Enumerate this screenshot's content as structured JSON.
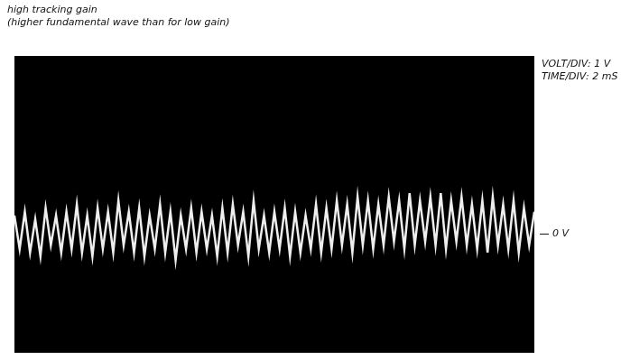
{
  "chart_data": {
    "type": "line",
    "title": "high tracking gain",
    "subtitle": "(higher fundamental wave than for low gain)",
    "annotations": [
      {
        "text": "VOLT/DIV: 1 V"
      },
      {
        "text": "TIME/DIV: 2 mS"
      },
      {
        "text": "0 V",
        "y": 0
      }
    ],
    "x": [
      0,
      0.2,
      0.4,
      0.6,
      0.8,
      1,
      1.2,
      1.4,
      1.6,
      1.8,
      2,
      2.2,
      2.4,
      2.6,
      2.8,
      3,
      3.2,
      3.4,
      3.6,
      3.8,
      4,
      4.2,
      4.4,
      4.6,
      4.8,
      5,
      5.2,
      5.4,
      5.6,
      5.8,
      6,
      6.2,
      6.4,
      6.6,
      6.8,
      7,
      7.2,
      7.4,
      7.6,
      7.8,
      8,
      8.2,
      8.4,
      8.6,
      8.8,
      9,
      9.2,
      9.4,
      9.6,
      9.8,
      10,
      10.2,
      10.4,
      10.6,
      10.8,
      11,
      11.2,
      11.4,
      11.6,
      11.8,
      12,
      12.2,
      12.4,
      12.6,
      12.8,
      13,
      13.2,
      13.4,
      13.6,
      13.8,
      14,
      14.2,
      14.4,
      14.6,
      14.8,
      15,
      15.2,
      15.4,
      15.6,
      15.8,
      16,
      16.2,
      16.4,
      16.6,
      16.8,
      17,
      17.2,
      17.4,
      17.6,
      17.8,
      18,
      18.2,
      18.4,
      18.6,
      18.8,
      19,
      19.2,
      19.4,
      19.6,
      19.8,
      20
    ],
    "values": [
      0.5,
      -0.4,
      0.6,
      -0.5,
      0.4,
      -0.6,
      0.7,
      -0.3,
      0.5,
      -0.5,
      0.6,
      -0.4,
      0.8,
      -0.5,
      0.5,
      -0.6,
      0.7,
      -0.4,
      0.6,
      -0.5,
      0.9,
      -0.3,
      0.6,
      -0.5,
      0.7,
      -0.6,
      0.5,
      -0.4,
      0.8,
      -0.5,
      0.6,
      -0.7,
      0.5,
      -0.4,
      0.7,
      -0.5,
      0.6,
      -0.4,
      0.5,
      -0.6,
      0.7,
      -0.5,
      0.8,
      -0.3,
      0.6,
      -0.6,
      0.9,
      -0.4,
      0.5,
      -0.5,
      0.6,
      -0.4,
      0.7,
      -0.6,
      0.6,
      -0.5,
      0.5,
      -0.4,
      0.8,
      -0.5,
      0.7,
      -0.4,
      0.9,
      -0.3,
      0.8,
      -0.5,
      1.0,
      -0.3,
      0.9,
      -0.4,
      0.8,
      -0.3,
      1.0,
      -0.2,
      0.9,
      -0.4,
      1.1,
      -0.3,
      0.9,
      -0.2,
      1.0,
      -0.3,
      1.1,
      -0.4,
      0.9,
      -0.2,
      1.0,
      -0.3,
      0.8,
      -0.4,
      0.9,
      -0.5,
      1.0,
      -0.3,
      0.8,
      -0.4,
      0.9,
      -0.5,
      0.7,
      -0.3,
      0.6
    ],
    "color": "#eeeeee",
    "xlim": [
      0,
      20
    ],
    "ylim": [
      -3.2,
      4.8
    ],
    "grid": false,
    "tick_labels": false
  }
}
